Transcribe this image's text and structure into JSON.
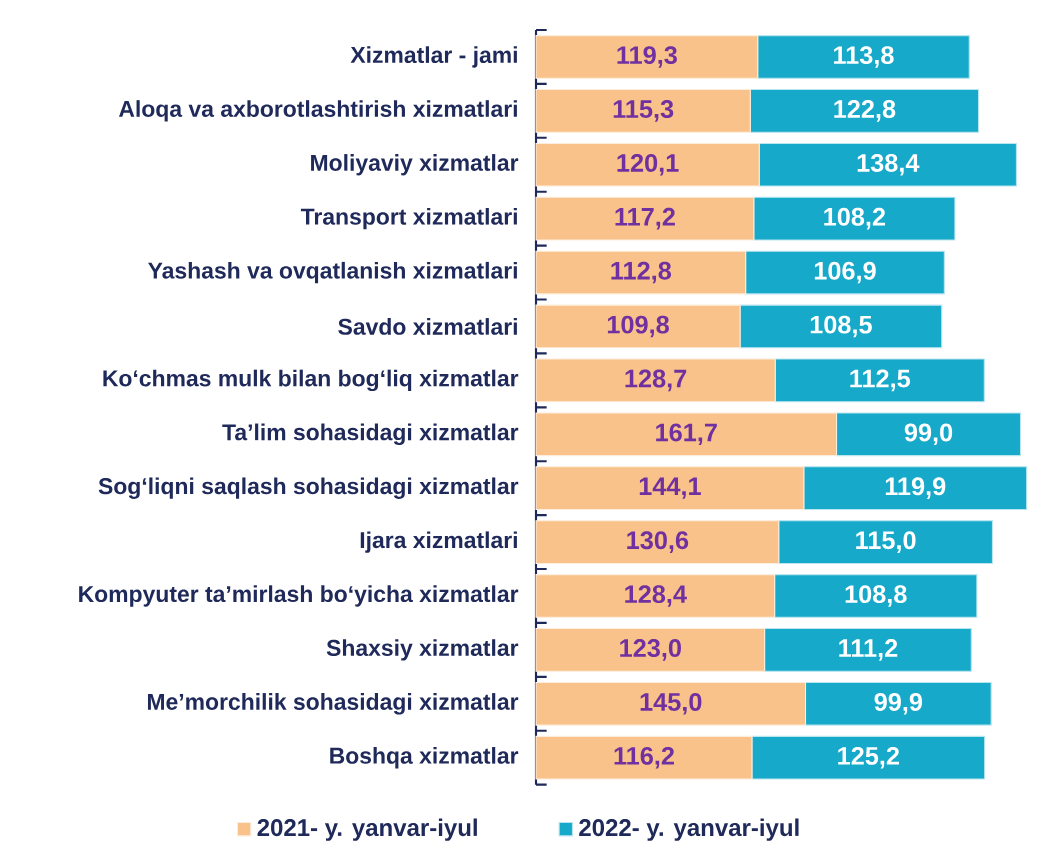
{
  "chart_data": {
    "type": "bar",
    "orientation": "horizontal",
    "stacked": true,
    "legend": "bottom",
    "categories": [
      "Xizmatlar - jami",
      "Aloqa va axborotlashtirish xizmatlari",
      "Moliyaviy xizmatlar",
      "Transport xizmatlari",
      "Yashash va ovqatlanish xizmatlari",
      "Savdo xizmatlari",
      "Ko‘chmas mulk bilan bog‘liq xizmatlar",
      "Ta’lim sohasidagi xizmatlar",
      "Sog‘liqni saqlash sohasidagi xizmatlar",
      "Ijara xizmatlari",
      "Kompyuter ta’mirlash bo‘yicha xizmatlar",
      "Shaxsiy xizmatlar",
      "Me’morchilik sohasidagi xizmatlar",
      "Boshqa xizmatlar"
    ],
    "series": [
      {
        "name": "2021- y. yanvar-iyul",
        "color": "#f8c28a",
        "values": [
          119.3,
          115.3,
          120.1,
          117.2,
          112.8,
          109.8,
          128.7,
          161.7,
          144.1,
          130.6,
          128.4,
          123.0,
          145.0,
          116.2
        ],
        "value_labels": [
          "119,3",
          "115,3",
          "120,1",
          "117,2",
          "112,8",
          "109,8",
          "128,7",
          "161,7",
          "144,1",
          "130,6",
          "128,4",
          "123,0",
          "145,0",
          "116,2"
        ]
      },
      {
        "name": "2022- y. yanvar-iyul",
        "color": "#17a9c9",
        "values": [
          113.8,
          122.8,
          138.4,
          108.2,
          106.9,
          108.5,
          112.5,
          99.0,
          119.9,
          115.0,
          108.8,
          111.2,
          99.9,
          125.2
        ],
        "value_labels": [
          "113,8",
          "122,8",
          "138,4",
          "108,2",
          "106,9",
          "108,5",
          "112,5",
          "99,0",
          "119,9",
          "115,0",
          "108,8",
          "111,2",
          "99,9",
          "125,2"
        ]
      }
    ]
  }
}
